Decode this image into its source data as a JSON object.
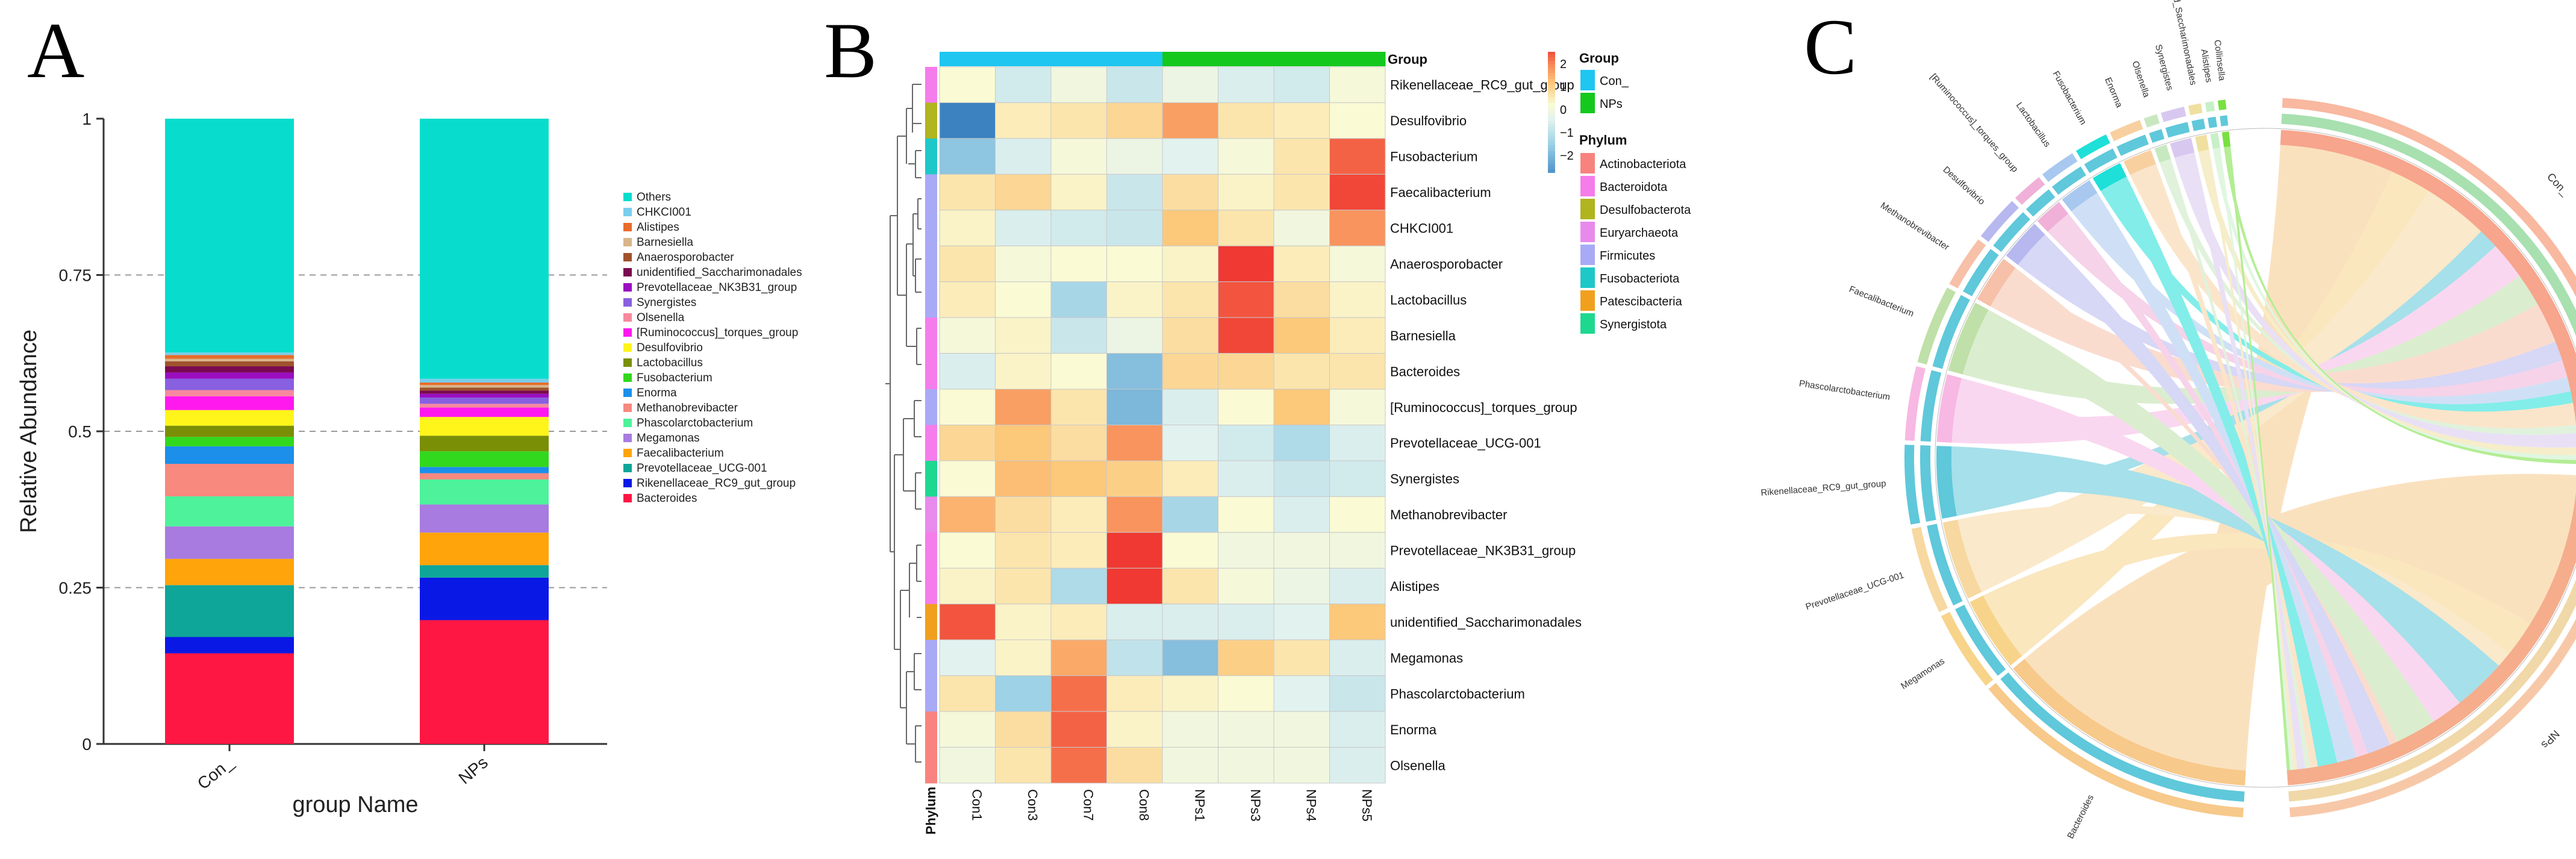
{
  "panel_letters": {
    "a": "A",
    "b": "B",
    "c": "C"
  },
  "chart_data": [
    {
      "id": "panel-a",
      "type": "bar",
      "stacked": true,
      "xlabel": "group Name",
      "ylabel": "Relative Abundance",
      "ylim": [
        0,
        1
      ],
      "yticks": [
        "0",
        "0.25",
        "0.5",
        "0.75",
        "1"
      ],
      "grid": "dashed horizontal",
      "categories": [
        "Con_",
        "NPs"
      ],
      "series": [
        {
          "name": "Bacteroides",
          "color": "#FF1744",
          "values": [
            0.145,
            0.198
          ]
        },
        {
          "name": "Rikenellaceae_RC9_gut_group",
          "color": "#0A18E6",
          "values": [
            0.026,
            0.068
          ]
        },
        {
          "name": "Prevotellaceae_UCG-001",
          "color": "#0FA69A",
          "values": [
            0.083,
            0.02
          ]
        },
        {
          "name": "Faecalibacterium",
          "color": "#FFA40A",
          "values": [
            0.042,
            0.052
          ]
        },
        {
          "name": "Megamonas",
          "color": "#A77BE0",
          "values": [
            0.052,
            0.045
          ]
        },
        {
          "name": "Phascolarctobacterium",
          "color": "#4DF29A",
          "values": [
            0.048,
            0.04
          ]
        },
        {
          "name": "Methanobrevibacter",
          "color": "#F7897E",
          "values": [
            0.052,
            0.01
          ]
        },
        {
          "name": "Enorma",
          "color": "#1C8FEA",
          "values": [
            0.028,
            0.01
          ]
        },
        {
          "name": "Fusobacterium",
          "color": "#32D81E",
          "values": [
            0.015,
            0.025
          ]
        },
        {
          "name": "Lactobacillus",
          "color": "#7A8F06",
          "values": [
            0.018,
            0.025
          ]
        },
        {
          "name": "Desulfovibrio",
          "color": "#FFF51A",
          "values": [
            0.025,
            0.03
          ]
        },
        {
          "name": "[Ruminococcus]_torques_group",
          "color": "#FF19EE",
          "values": [
            0.022,
            0.015
          ]
        },
        {
          "name": "Olsenella",
          "color": "#F7899E",
          "values": [
            0.01,
            0.006
          ]
        },
        {
          "name": "Synergistes",
          "color": "#8860E0",
          "values": [
            0.018,
            0.01
          ]
        },
        {
          "name": "Prevotellaceae_NK3B31_group",
          "color": "#9A0EC0",
          "values": [
            0.01,
            0.006
          ]
        },
        {
          "name": "unidentified_Saccharimonadales",
          "color": "#7A0A50",
          "values": [
            0.01,
            0.005
          ]
        },
        {
          "name": "Anaerosporobacter",
          "color": "#A0522D",
          "values": [
            0.008,
            0.005
          ]
        },
        {
          "name": "Barnesiella",
          "color": "#D8B58A",
          "values": [
            0.004,
            0.004
          ]
        },
        {
          "name": "Alistipes",
          "color": "#E86C2A",
          "values": [
            0.006,
            0.004
          ]
        },
        {
          "name": "CHKCI001",
          "color": "#7ACDEB",
          "values": [
            0.004,
            0.006
          ]
        },
        {
          "name": "Others",
          "color": "#08DDCD",
          "values": [
            0.374,
            0.416
          ]
        }
      ]
    },
    {
      "id": "panel-b",
      "type": "heatmap",
      "columns": [
        "Con1",
        "Con3",
        "Con7",
        "Con8",
        "NPs1",
        "NPs3",
        "NPs4",
        "NPs5"
      ],
      "column_groups": [
        "Con_",
        "Con_",
        "Con_",
        "Con_",
        "NPs",
        "NPs",
        "NPs",
        "NPs"
      ],
      "top_annotation_label": "Group",
      "left_annotation_label": "Phylum",
      "rows": [
        "Rikenellaceae_RC9_gut_group",
        "Desulfovibrio",
        "Fusobacterium",
        "Faecalibacterium",
        "CHKCI001",
        "Anaerosporobacter",
        "Lactobacillus",
        "Barnesiella",
        "Bacteroides",
        "[Ruminococcus]_torques_group",
        "Prevotellaceae_UCG-001",
        "Synergistes",
        "Methanobrevibacter",
        "Prevotellaceae_NK3B31_group",
        "Alistipes",
        "unidentified_Saccharimonadales",
        "Megamonas",
        "Phascolarctobacterium",
        "Enorma",
        "Olsenella"
      ],
      "row_phylum": [
        "Bacteroidota",
        "Desulfobacterota",
        "Fusobacteriota",
        "Firmicutes",
        "Firmicutes",
        "Firmicutes",
        "Firmicutes",
        "Bacteroidota",
        "Bacteroidota",
        "Firmicutes",
        "Bacteroidota",
        "Synergistota",
        "Euryarchaeota",
        "Bacteroidota",
        "Bacteroidota",
        "Patescibacteria",
        "Firmicutes",
        "Firmicutes",
        "Actinobacteriota",
        "Actinobacteriota"
      ],
      "values": [
        [
          0.3,
          -0.4,
          0.1,
          -0.5,
          0.0,
          -0.3,
          -0.4,
          0.2
        ],
        [
          -2.2,
          0.5,
          0.6,
          0.8,
          1.4,
          0.6,
          0.5,
          0.3
        ],
        [
          -1.2,
          -0.3,
          0.2,
          0.0,
          -0.2,
          0.2,
          0.6,
          1.9
        ],
        [
          0.6,
          0.8,
          0.4,
          -0.5,
          0.7,
          0.4,
          0.6,
          2.1
        ],
        [
          0.4,
          -0.3,
          -0.4,
          -0.5,
          1.0,
          0.6,
          0.1,
          1.5
        ],
        [
          0.6,
          0.2,
          0.3,
          0.3,
          0.4,
          2.2,
          0.5,
          0.2
        ],
        [
          0.5,
          0.3,
          -0.9,
          0.4,
          0.6,
          2.0,
          0.7,
          0.4
        ],
        [
          0.2,
          0.4,
          -0.5,
          0.0,
          0.7,
          2.1,
          1.0,
          0.5
        ],
        [
          -0.3,
          0.4,
          0.3,
          -1.3,
          0.8,
          0.8,
          0.6,
          0.6
        ],
        [
          0.3,
          1.4,
          0.6,
          -1.4,
          -0.3,
          0.3,
          1.0,
          0.2
        ],
        [
          0.8,
          1.0,
          0.7,
          1.5,
          -0.2,
          -0.4,
          -0.8,
          -0.3
        ],
        [
          0.3,
          1.1,
          1.0,
          0.9,
          0.5,
          -0.3,
          -0.5,
          -0.4
        ],
        [
          1.2,
          0.7,
          0.5,
          1.5,
          -0.9,
          0.3,
          -0.3,
          0.3
        ],
        [
          0.3,
          0.6,
          0.5,
          2.2,
          0.3,
          0.1,
          0.1,
          0.1
        ],
        [
          0.4,
          0.6,
          -0.8,
          2.2,
          0.6,
          0.2,
          0.0,
          -0.3
        ],
        [
          2.0,
          0.4,
          0.5,
          -0.3,
          -0.3,
          -0.3,
          -0.2,
          1.0
        ],
        [
          -0.2,
          0.4,
          1.3,
          -0.6,
          -1.3,
          0.9,
          0.6,
          -0.3
        ],
        [
          0.6,
          -1.0,
          1.8,
          0.5,
          0.4,
          0.3,
          -0.2,
          -0.5
        ],
        [
          0.2,
          0.7,
          1.9,
          0.4,
          0.1,
          0.1,
          0.1,
          -0.3
        ],
        [
          0.1,
          0.6,
          1.8,
          0.7,
          0.1,
          0.1,
          0.1,
          -0.3
        ]
      ],
      "color_range": [
        -2,
        2
      ],
      "colorbar_ticks": [
        "2",
        "1",
        "0",
        "−1",
        "−2"
      ],
      "legend_group_title": "Group",
      "legend_groups": [
        {
          "name": "Con_",
          "color": "#1EC6F0"
        },
        {
          "name": "NPs",
          "color": "#14C81E"
        }
      ],
      "legend_phylum_title": "Phylum",
      "legend_phyla": [
        {
          "name": "Actinobacteriota",
          "color": "#F8837E"
        },
        {
          "name": "Bacteroidota",
          "color": "#F57CEB"
        },
        {
          "name": "Desulfobacterota",
          "color": "#B0B41E"
        },
        {
          "name": "Euryarchaeota",
          "color": "#E88AEB"
        },
        {
          "name": "Firmicutes",
          "color": "#A8AAF5"
        },
        {
          "name": "Fusobacteriota",
          "color": "#1EC8C8"
        },
        {
          "name": "Patescibacteria",
          "color": "#F0A01E"
        },
        {
          "name": "Synergistota",
          "color": "#1ED890"
        }
      ]
    },
    {
      "id": "panel-c",
      "type": "chord",
      "groups": [
        {
          "name": "Con_",
          "color": "#F7A58C"
        },
        {
          "name": "NPs",
          "color": "#F5AD8C"
        }
      ],
      "taxa": [
        {
          "name": "Bacteroides",
          "color": "#F7C98A",
          "values": [
            0.145,
            0.198
          ]
        },
        {
          "name": "Megamonas",
          "color": "#F7D48A",
          "values": [
            0.052,
            0.045
          ]
        },
        {
          "name": "Prevotellaceae_UCG-001",
          "color": "#F7D8A0",
          "values": [
            0.083,
            0.02
          ]
        },
        {
          "name": "Rikenellaceae_RC9_gut_group",
          "color": "#5FC8DA",
          "values": [
            0.026,
            0.068
          ]
        },
        {
          "name": "Phascolarctobacterium",
          "color": "#F7B8E4",
          "values": [
            0.048,
            0.04
          ]
        },
        {
          "name": "Faecalibacterium",
          "color": "#BFE0A8",
          "values": [
            0.042,
            0.052
          ]
        },
        {
          "name": "Methanobrevibacter",
          "color": "#F7C0A8",
          "values": [
            0.052,
            0.01
          ]
        },
        {
          "name": "Desulfovibrio",
          "color": "#B8B8F0",
          "values": [
            0.025,
            0.03
          ]
        },
        {
          "name": "[Ruminococcus]_torques_group",
          "color": "#F0B0D8",
          "values": [
            0.022,
            0.015
          ]
        },
        {
          "name": "Lactobacillus",
          "color": "#A8C8F0",
          "values": [
            0.018,
            0.025
          ]
        },
        {
          "name": "Fusobacterium",
          "color": "#1EE0D8",
          "values": [
            0.015,
            0.025
          ]
        },
        {
          "name": "Enorma",
          "color": "#F8D0A0",
          "values": [
            0.028,
            0.01
          ]
        },
        {
          "name": "Olsenella",
          "color": "#C8E8C0",
          "values": [
            0.01,
            0.006
          ]
        },
        {
          "name": "Synergistes",
          "color": "#D8C8F0",
          "values": [
            0.018,
            0.01
          ]
        },
        {
          "name": "unidentified_Saccharimonadales",
          "color": "#F0E0A0",
          "values": [
            0.01,
            0.005
          ]
        },
        {
          "name": "Alistipes",
          "color": "#C8F0C8",
          "values": [
            0.006,
            0.004
          ]
        },
        {
          "name": "Collinsella",
          "color": "#78E040",
          "values": [
            0.005,
            0.004
          ]
        }
      ]
    }
  ]
}
